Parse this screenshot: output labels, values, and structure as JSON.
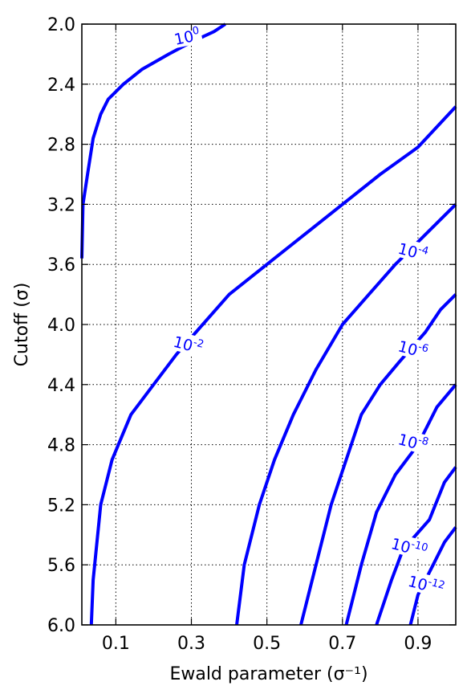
{
  "chart_data": {
    "type": "line",
    "subtype": "contour",
    "title": "",
    "xlabel": "Ewald parameter (σ⁻¹)",
    "ylabel": "Cutoff (σ)",
    "xlim": [
      0.01,
      1.0
    ],
    "ylim": [
      6.0,
      2.0
    ],
    "y_inverted": true,
    "x_ticks": [
      "0.1",
      "0.3",
      "0.5",
      "0.7",
      "0.9"
    ],
    "x_tick_values": [
      0.1,
      0.3,
      0.5,
      0.7,
      0.9
    ],
    "y_ticks": [
      "2.0",
      "2.4",
      "2.8",
      "3.2",
      "3.6",
      "4.0",
      "4.4",
      "4.8",
      "5.2",
      "5.6",
      "6.0"
    ],
    "y_tick_values": [
      2.0,
      2.4,
      2.8,
      3.2,
      3.6,
      4.0,
      4.4,
      4.8,
      5.2,
      5.6,
      6.0
    ],
    "grid": true,
    "line_color": "#0000ff",
    "series": [
      {
        "level_base": "10",
        "level_exp": "0",
        "points": [
          [
            0.01,
            3.56
          ],
          [
            0.013,
            3.2
          ],
          [
            0.025,
            3.0
          ],
          [
            0.04,
            2.76
          ],
          [
            0.06,
            2.6
          ],
          [
            0.08,
            2.5
          ],
          [
            0.12,
            2.4
          ],
          [
            0.17,
            2.3
          ],
          [
            0.24,
            2.2
          ],
          [
            0.3,
            2.12
          ],
          [
            0.36,
            2.05
          ],
          [
            0.39,
            2.0
          ]
        ],
        "label_at": [
          0.29,
          2.1
        ],
        "label_angle": -12
      },
      {
        "level_base": "10",
        "level_exp": "-2",
        "points": [
          [
            0.035,
            6.0
          ],
          [
            0.04,
            5.7
          ],
          [
            0.06,
            5.2
          ],
          [
            0.09,
            4.9
          ],
          [
            0.14,
            4.6
          ],
          [
            0.2,
            4.4
          ],
          [
            0.26,
            4.2
          ],
          [
            0.33,
            4.0
          ],
          [
            0.4,
            3.8
          ],
          [
            0.5,
            3.6
          ],
          [
            0.6,
            3.4
          ],
          [
            0.7,
            3.2
          ],
          [
            0.8,
            3.0
          ],
          [
            0.9,
            2.82
          ],
          [
            1.0,
            2.55
          ]
        ],
        "label_at": [
          0.29,
          4.15
        ],
        "label_angle": 15
      },
      {
        "level_base": "10",
        "level_exp": "-4",
        "points": [
          [
            0.42,
            6.0
          ],
          [
            0.44,
            5.6
          ],
          [
            0.48,
            5.2
          ],
          [
            0.52,
            4.9
          ],
          [
            0.57,
            4.6
          ],
          [
            0.63,
            4.3
          ],
          [
            0.7,
            4.0
          ],
          [
            0.77,
            3.8
          ],
          [
            0.84,
            3.6
          ],
          [
            0.9,
            3.45
          ],
          [
            0.96,
            3.3
          ],
          [
            1.0,
            3.2
          ]
        ],
        "label_at": [
          0.885,
          3.53
        ],
        "label_angle": 15
      },
      {
        "level_base": "10",
        "level_exp": "-6",
        "points": [
          [
            0.59,
            6.0
          ],
          [
            0.63,
            5.6
          ],
          [
            0.67,
            5.2
          ],
          [
            0.71,
            4.9
          ],
          [
            0.75,
            4.6
          ],
          [
            0.8,
            4.4
          ],
          [
            0.85,
            4.25
          ],
          [
            0.92,
            4.05
          ],
          [
            0.96,
            3.9
          ],
          [
            1.0,
            3.8
          ]
        ],
        "label_at": [
          0.885,
          4.18
        ],
        "label_angle": 15
      },
      {
        "level_base": "10",
        "level_exp": "-8",
        "points": [
          [
            0.71,
            6.0
          ],
          [
            0.75,
            5.6
          ],
          [
            0.79,
            5.25
          ],
          [
            0.84,
            5.0
          ],
          [
            0.9,
            4.8
          ],
          [
            0.95,
            4.55
          ],
          [
            1.0,
            4.4
          ]
        ],
        "label_at": [
          0.885,
          4.8
        ],
        "label_angle": 15
      },
      {
        "level_base": "10",
        "level_exp": "-10",
        "points": [
          [
            0.79,
            6.0
          ],
          [
            0.83,
            5.7
          ],
          [
            0.86,
            5.5
          ],
          [
            0.93,
            5.3
          ],
          [
            0.97,
            5.05
          ],
          [
            1.0,
            4.95
          ]
        ],
        "label_at": [
          0.875,
          5.5
        ],
        "label_angle": 15
      },
      {
        "level_base": "10",
        "level_exp": "-12",
        "points": [
          [
            0.88,
            6.0
          ],
          [
            0.9,
            5.8
          ],
          [
            0.94,
            5.6
          ],
          [
            0.97,
            5.45
          ],
          [
            1.0,
            5.35
          ]
        ],
        "label_at": [
          0.92,
          5.75
        ],
        "label_angle": 15
      }
    ]
  }
}
